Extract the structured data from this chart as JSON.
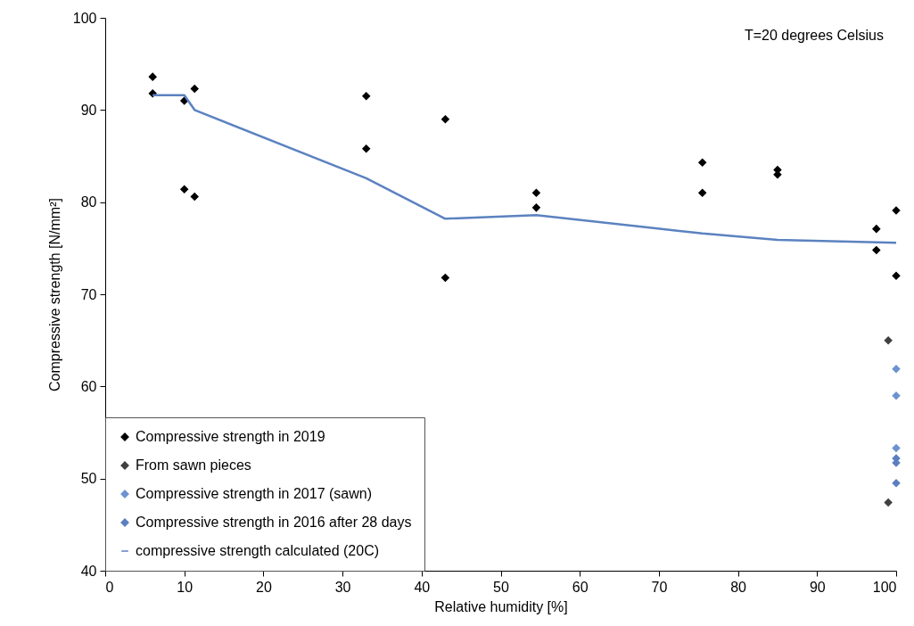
{
  "chart_data": {
    "type": "scatter",
    "xlabel": "Relative  humidity [%]",
    "ylabel": "Compressive  strength  [N/mm²]",
    "annotations": [
      "T=20 degrees  Celsius"
    ],
    "xlim": [
      0,
      100
    ],
    "xticks": [
      0,
      10,
      20,
      30,
      40,
      50,
      60,
      70,
      80,
      90,
      100
    ],
    "ylim": [
      40,
      100
    ],
    "yticks": [
      40,
      50,
      60,
      70,
      80,
      90,
      100
    ],
    "grid": false,
    "legend": "bottom left",
    "series": [
      {
        "name": "Compressive strength in 2019",
        "color": "#000000",
        "marker": "diamond",
        "x": [
          6,
          6,
          10,
          10,
          11.3,
          11.3,
          33,
          33,
          43,
          43,
          54.5,
          54.5,
          75.5,
          75.5,
          85,
          85,
          97.5,
          97.5,
          100,
          100
        ],
        "values": [
          93.6,
          91.8,
          91.0,
          81.4,
          92.3,
          80.6,
          91.5,
          85.8,
          89.0,
          71.8,
          81.0,
          79.4,
          84.3,
          81.0,
          83.5,
          83.0,
          77.1,
          74.8,
          79.1,
          72.0
        ]
      },
      {
        "name": "From sawn pieces",
        "color": "#404040",
        "marker": "diamond",
        "x": [
          99,
          99
        ],
        "values": [
          65.0,
          47.4
        ]
      },
      {
        "name": "Compressive strength in 2017 (sawn)",
        "color": "#6c93cf",
        "marker": "diamond",
        "x": [
          100,
          100,
          100
        ],
        "values": [
          61.9,
          59.0,
          53.3
        ]
      },
      {
        "name": "Compressive strength in 2016 after 28 days",
        "color": "#5a7fbf",
        "marker": "diamond",
        "x": [
          100,
          100,
          100
        ],
        "values": [
          52.2,
          51.7,
          49.5
        ]
      },
      {
        "name": "compressive strength calculated (20C)",
        "type": "line",
        "color": "#5b82c0",
        "line_style": "solid",
        "x": [
          6,
          10,
          11.3,
          33,
          43,
          54.5,
          75.5,
          85,
          100
        ],
        "values": [
          91.6,
          91.6,
          90.0,
          82.6,
          78.2,
          78.6,
          76.6,
          75.9,
          75.6
        ]
      }
    ]
  }
}
